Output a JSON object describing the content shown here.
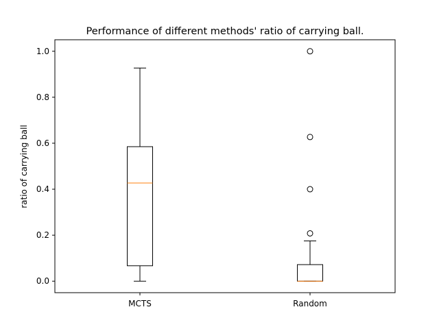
{
  "chart_data": {
    "type": "box",
    "title": "Performance of different methods' ratio of carrying ball.",
    "xlabel": "",
    "ylabel": "ratio of carrying ball",
    "ylim": [
      -0.05,
      1.05
    ],
    "yticks": [
      0.0,
      0.2,
      0.4,
      0.6,
      0.8,
      1.0
    ],
    "ytick_labels": [
      "0.0",
      "0.2",
      "0.4",
      "0.6",
      "0.8",
      "1.0"
    ],
    "categories": [
      "MCTS",
      "Random"
    ],
    "boxes": [
      {
        "name": "MCTS",
        "whisker_low": 0.0,
        "q1": 0.067,
        "median": 0.427,
        "q3": 0.585,
        "whisker_high": 0.927,
        "outliers": []
      },
      {
        "name": "Random",
        "whisker_low": 0.0,
        "q1": 0.0,
        "median": 0.0,
        "q3": 0.072,
        "whisker_high": 0.175,
        "outliers": [
          0.208,
          0.4,
          0.627,
          1.0
        ]
      }
    ],
    "grid": false,
    "colors": {
      "box": "#000000",
      "median": "#ff7f0e",
      "axes": "#000000"
    }
  }
}
